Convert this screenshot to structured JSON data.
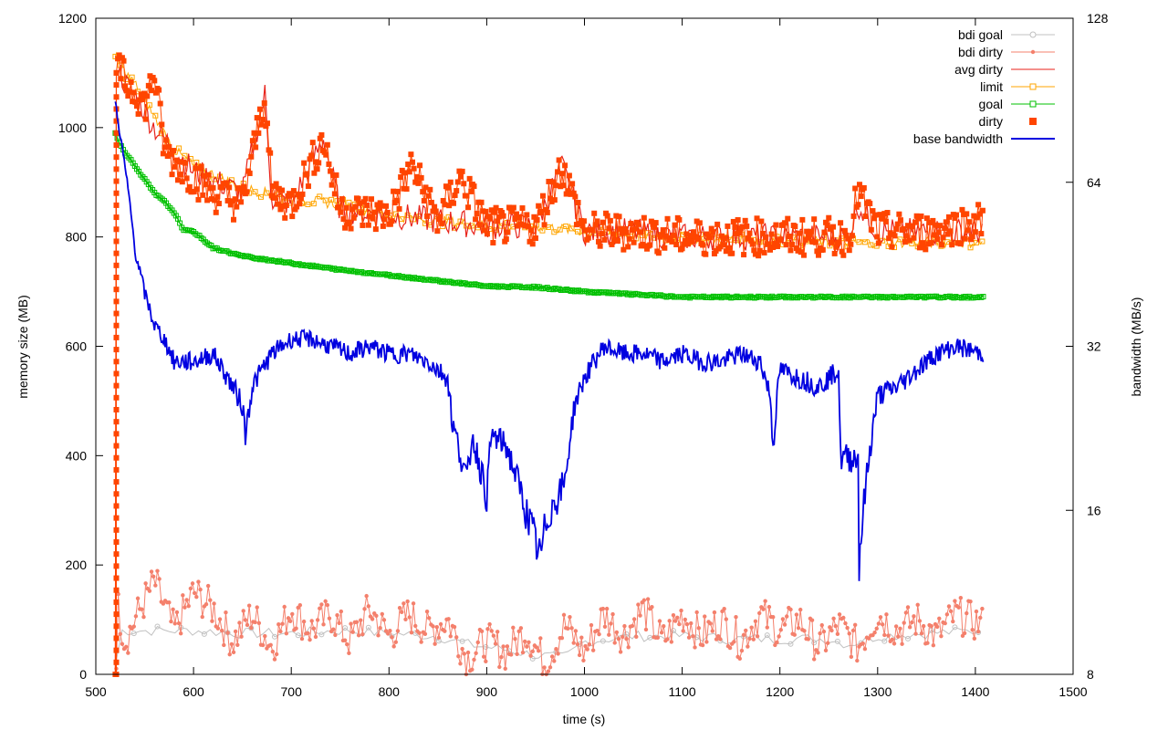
{
  "chart_data": {
    "type": "line",
    "title": "",
    "xlabel": "time (s)",
    "ylabel": "memory size (MB)",
    "y2label": "bandwidth (MB/s)",
    "xlim": [
      500,
      1500
    ],
    "ylim": [
      0,
      1200
    ],
    "y2lim": [
      8,
      128
    ],
    "y2scale": "log2",
    "grid": false,
    "legend_position": "top-right",
    "x_ticks": [
      500,
      600,
      700,
      800,
      900,
      1000,
      1100,
      1200,
      1300,
      1400,
      1500
    ],
    "y_ticks": [
      0,
      200,
      400,
      600,
      800,
      1000,
      1200
    ],
    "y2_ticks": [
      8,
      16,
      32,
      64,
      128
    ],
    "series": [
      {
        "name": "bdi goal",
        "axis": "y",
        "color": "#c0c0c0",
        "marker": "circle",
        "x": [
          520,
          523,
          530,
          560,
          600,
          650,
          700,
          750,
          800,
          850,
          880,
          900,
          920,
          950,
          980,
          1000,
          1050,
          1100,
          1150,
          1200,
          1250,
          1270,
          1300,
          1350,
          1408
        ],
        "y": [
          0,
          80,
          80,
          80,
          80,
          75,
          75,
          80,
          75,
          70,
          55,
          50,
          45,
          35,
          30,
          60,
          70,
          70,
          65,
          65,
          65,
          55,
          70,
          75,
          80
        ]
      },
      {
        "name": "bdi dirty",
        "axis": "y",
        "color": "#f4806c",
        "marker": "dot",
        "x": [
          520,
          523,
          530,
          540,
          560,
          580,
          600,
          620,
          640,
          660,
          680,
          700,
          720,
          740,
          760,
          780,
          800,
          820,
          840,
          860,
          880,
          900,
          920,
          940,
          960,
          980,
          1000,
          1020,
          1040,
          1060,
          1080,
          1100,
          1120,
          1140,
          1160,
          1180,
          1200,
          1220,
          1240,
          1260,
          1280,
          1300,
          1320,
          1340,
          1360,
          1380,
          1408
        ],
        "y": [
          0,
          120,
          60,
          100,
          170,
          80,
          150,
          120,
          60,
          110,
          50,
          120,
          80,
          110,
          60,
          120,
          70,
          110,
          80,
          100,
          30,
          60,
          40,
          80,
          20,
          90,
          40,
          110,
          70,
          120,
          60,
          110,
          70,
          100,
          60,
          110,
          80,
          100,
          50,
          90,
          50,
          110,
          80,
          100,
          70,
          110,
          90
        ]
      },
      {
        "name": "avg dirty",
        "axis": "y",
        "color": "#e8221a",
        "marker": "none",
        "x": [
          520,
          521,
          523,
          525,
          530,
          540,
          550,
          560,
          570,
          580,
          600,
          650,
          673,
          680,
          700,
          733,
          750,
          800,
          850,
          900,
          950,
          977,
          1000,
          1050,
          1100,
          1150,
          1200,
          1250,
          1270,
          1280,
          1300,
          1350,
          1408
        ],
        "y": [
          0,
          1120,
          1110,
          1100,
          1080,
          1060,
          1030,
          1000,
          980,
          960,
          920,
          880,
          1060,
          870,
          860,
          980,
          850,
          840,
          830,
          820,
          820,
          930,
          810,
          810,
          800,
          800,
          800,
          800,
          800,
          860,
          810,
          810,
          810
        ]
      },
      {
        "name": "limit",
        "axis": "y",
        "color": "#ffa500",
        "marker": "square-open",
        "x": [
          520,
          523,
          530,
          540,
          550,
          560,
          570,
          580,
          600,
          650,
          700,
          750,
          800,
          850,
          900,
          950,
          1000,
          1050,
          1100,
          1150,
          1200,
          1250,
          1280,
          1300,
          1350,
          1408
        ],
        "y": [
          1130,
          1120,
          1100,
          1080,
          1050,
          1020,
          990,
          960,
          930,
          890,
          870,
          860,
          840,
          830,
          820,
          820,
          810,
          805,
          800,
          795,
          795,
          790,
          790,
          790,
          790,
          790
        ]
      },
      {
        "name": "goal",
        "axis": "y",
        "color": "#00c000",
        "marker": "square-open",
        "x": [
          520,
          523,
          530,
          540,
          550,
          560,
          570,
          580,
          590,
          600,
          620,
          650,
          700,
          750,
          800,
          850,
          900,
          950,
          1000,
          1050,
          1100,
          1150,
          1200,
          1250,
          1300,
          1350,
          1408
        ],
        "y": [
          990,
          975,
          955,
          930,
          905,
          880,
          865,
          845,
          812,
          810,
          780,
          765,
          752,
          740,
          730,
          720,
          710,
          708,
          700,
          695,
          690,
          690,
          690,
          690,
          690,
          690,
          690
        ]
      },
      {
        "name": "dirty",
        "axis": "y",
        "color": "#ff4500",
        "marker": "square-filled",
        "x": [
          520,
          521,
          523,
          525,
          530,
          540,
          550,
          560,
          570,
          580,
          600,
          620,
          650,
          673,
          680,
          700,
          733,
          750,
          800,
          823,
          850,
          873,
          900,
          950,
          977,
          1000,
          1050,
          1100,
          1150,
          1200,
          1250,
          1270,
          1280,
          1300,
          1350,
          1408
        ],
        "y": [
          0,
          1110,
          1090,
          1110,
          1080,
          1070,
          1040,
          1100,
          960,
          940,
          910,
          880,
          860,
          1060,
          880,
          860,
          980,
          850,
          840,
          930,
          830,
          910,
          820,
          820,
          930,
          810,
          810,
          800,
          800,
          800,
          800,
          800,
          880,
          810,
          810,
          830
        ]
      },
      {
        "name": "base bandwidth",
        "axis": "y2",
        "color": "#0000e0",
        "marker": "none",
        "x": [
          520,
          523,
          530,
          540,
          550,
          560,
          570,
          580,
          600,
          620,
          640,
          650,
          653,
          660,
          680,
          700,
          720,
          740,
          760,
          780,
          800,
          820,
          840,
          860,
          865,
          880,
          885,
          900,
          905,
          920,
          940,
          950,
          955,
          960,
          965,
          980,
          990,
          1000,
          1020,
          1040,
          1060,
          1080,
          1100,
          1120,
          1140,
          1160,
          1180,
          1190,
          1193,
          1200,
          1220,
          1240,
          1260,
          1262,
          1280,
          1281,
          1300,
          1320,
          1340,
          1360,
          1380,
          1408
        ],
        "y": [
          90,
          82,
          68,
          48,
          40,
          35,
          33,
          30,
          30,
          31,
          27,
          25,
          22,
          27,
          31,
          33,
          33,
          32,
          31,
          32,
          31,
          31,
          30,
          28,
          23,
          18,
          22,
          17,
          22,
          21,
          16,
          14,
          13,
          15,
          16,
          18,
          25,
          28,
          32,
          31,
          31,
          30,
          31,
          30,
          30,
          31,
          30,
          26,
          21,
          29,
          28,
          27,
          29,
          20,
          20,
          13,
          26,
          27,
          29,
          31,
          32,
          31
        ]
      }
    ]
  }
}
